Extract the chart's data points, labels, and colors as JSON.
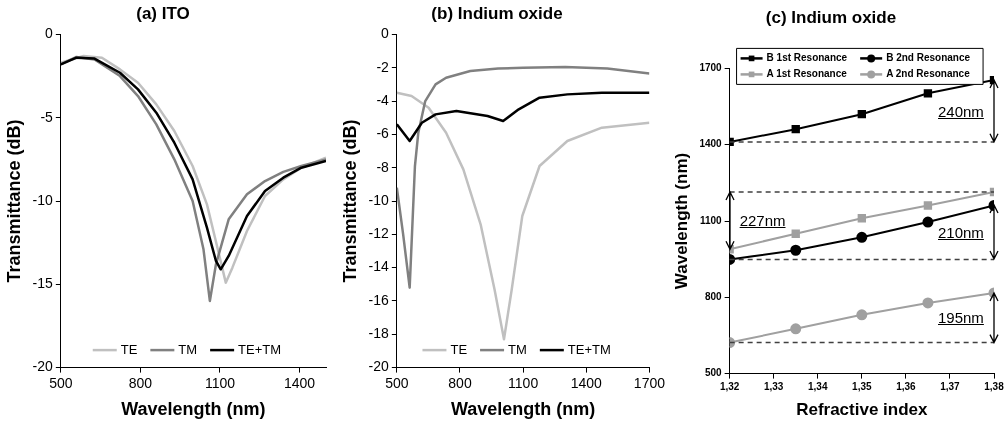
{
  "chart_data": [
    {
      "type": "line",
      "title": "(a) ITO",
      "xlabel": "Wavelength (nm)",
      "ylabel": "Transmittance (dB)",
      "xlim": [
        500,
        1500
      ],
      "xticks": [
        500,
        800,
        1100,
        1400
      ],
      "ylim": [
        -20,
        0
      ],
      "yticks": [
        0,
        -5,
        -10,
        -15,
        -20
      ],
      "legend": "bottom",
      "marker": "none",
      "series": [
        {
          "name": "TE",
          "color": "#c0c0c0",
          "x": [
            500,
            586,
            655,
            723,
            791,
            860,
            928,
            997,
            1051,
            1092,
            1122,
            1147,
            1202,
            1270,
            1339,
            1407,
            1500
          ],
          "values": [
            -1.7,
            -1.3,
            -1.4,
            -2.1,
            -2.9,
            -4.2,
            -5.8,
            -7.9,
            -10.2,
            -12.9,
            -14.9,
            -14.0,
            -11.8,
            -9.7,
            -8.7,
            -8.0,
            -7.4
          ]
        },
        {
          "name": "TM",
          "color": "#808080",
          "x": [
            500,
            559,
            627,
            723,
            791,
            860,
            928,
            997,
            1038,
            1062,
            1085,
            1133,
            1202,
            1270,
            1339,
            1407,
            1500
          ],
          "values": [
            -1.8,
            -1.35,
            -1.5,
            -2.5,
            -3.7,
            -5.4,
            -7.5,
            -10.0,
            -12.9,
            -16.0,
            -13.8,
            -11.1,
            -9.6,
            -8.8,
            -8.25,
            -7.9,
            -7.5
          ]
        },
        {
          "name": "TE+TM",
          "color": "#000000",
          "x": [
            500,
            559,
            627,
            723,
            791,
            860,
            928,
            997,
            1051,
            1085,
            1103,
            1133,
            1202,
            1270,
            1339,
            1407,
            1500
          ],
          "values": [
            -1.8,
            -1.4,
            -1.45,
            -2.3,
            -3.3,
            -4.7,
            -6.5,
            -8.7,
            -11.6,
            -13.6,
            -14.1,
            -13.3,
            -10.9,
            -9.4,
            -8.6,
            -8.0,
            -7.6
          ]
        }
      ]
    },
    {
      "type": "line",
      "title": "(b) Indium oxide",
      "xlabel": "Wavelength (nm)",
      "ylabel": "Transmittance (dB)",
      "xlim": [
        500,
        1700
      ],
      "xticks": [
        500,
        800,
        1100,
        1400,
        1700
      ],
      "ylim": [
        -20,
        0
      ],
      "yticks": [
        0,
        -2,
        -4,
        -6,
        -8,
        -10,
        -12,
        -14,
        -16,
        -18,
        -20
      ],
      "legend": "bottom",
      "marker": "none",
      "series": [
        {
          "name": "TE",
          "color": "#c0c0c0",
          "x": [
            500,
            570,
            651,
            734,
            816,
            898,
            964,
            1009,
            1046,
            1096,
            1178,
            1310,
            1474,
            1700
          ],
          "values": [
            -3.5,
            -3.7,
            -4.4,
            -5.9,
            -8.1,
            -11.4,
            -15.3,
            -18.3,
            -15.3,
            -10.9,
            -7.9,
            -6.4,
            -5.6,
            -5.3
          ]
        },
        {
          "name": "TM",
          "color": "#808080",
          "x": [
            500,
            530,
            561,
            586,
            602,
            635,
            684,
            734,
            849,
            981,
            1100,
            1300,
            1500,
            1700
          ],
          "values": [
            -9.2,
            -12.0,
            -15.2,
            -7.9,
            -5.9,
            -4.0,
            -3.0,
            -2.6,
            -2.2,
            -2.05,
            -2.0,
            -1.95,
            -2.05,
            -2.35
          ]
        },
        {
          "name": "TE+TM",
          "color": "#000000",
          "x": [
            500,
            561,
            619,
            684,
            783,
            931,
            1005,
            1079,
            1178,
            1310,
            1474,
            1700
          ],
          "values": [
            -5.4,
            -6.4,
            -5.3,
            -4.8,
            -4.6,
            -4.9,
            -5.2,
            -4.5,
            -3.8,
            -3.6,
            -3.5,
            -3.5
          ]
        }
      ]
    },
    {
      "type": "line",
      "title": "(c) Indium oxide",
      "xlabel": "Refractive index",
      "ylabel": "Wavelength (nm)",
      "xlim": [
        1.32,
        1.38
      ],
      "xticks": [
        {
          "value": 1.32,
          "label": "1,32"
        },
        {
          "value": 1.33,
          "label": "1,33"
        },
        {
          "value": 1.34,
          "label": "1,34"
        },
        {
          "value": 1.35,
          "label": "1,35"
        },
        {
          "value": 1.36,
          "label": "1,36"
        },
        {
          "value": 1.37,
          "label": "1,37"
        },
        {
          "value": 1.38,
          "label": "1,38"
        }
      ],
      "ylim": [
        500,
        1700
      ],
      "yticks": [
        500,
        800,
        1100,
        1400,
        1700
      ],
      "legend": "top",
      "x": [
        1.32,
        1.335,
        1.35,
        1.365,
        1.38
      ],
      "series": [
        {
          "name": "B 1st Resonance",
          "color": "#000000",
          "marker": "square",
          "values": [
            1411,
            1461,
            1520,
            1602,
            1654
          ]
        },
        {
          "name": "B 2nd Resonance",
          "color": "#000000",
          "marker": "circle",
          "values": [
            949,
            985,
            1036,
            1096,
            1161
          ]
        },
        {
          "name": "A 1st Resonance",
          "color": "#a0a0a0",
          "marker": "square",
          "values": [
            989,
            1050,
            1111,
            1161,
            1214
          ]
        },
        {
          "name": "A 2nd Resonance",
          "color": "#a0a0a0",
          "marker": "circle",
          "values": [
            622,
            676,
            731,
            778,
            817
          ]
        }
      ],
      "ref_lines": [
        {
          "axis": "y",
          "value": 1411,
          "line_style": "dashed",
          "color": "#404040"
        },
        {
          "axis": "y",
          "value": 1214,
          "line_style": "dashed",
          "color": "#404040"
        },
        {
          "axis": "y",
          "value": 949,
          "line_style": "dashed",
          "color": "#404040"
        },
        {
          "axis": "y",
          "value": 622,
          "line_style": "dashed",
          "color": "#404040"
        }
      ],
      "annotations": [
        "240nm",
        "227nm",
        "210nm",
        "195nm"
      ]
    }
  ]
}
